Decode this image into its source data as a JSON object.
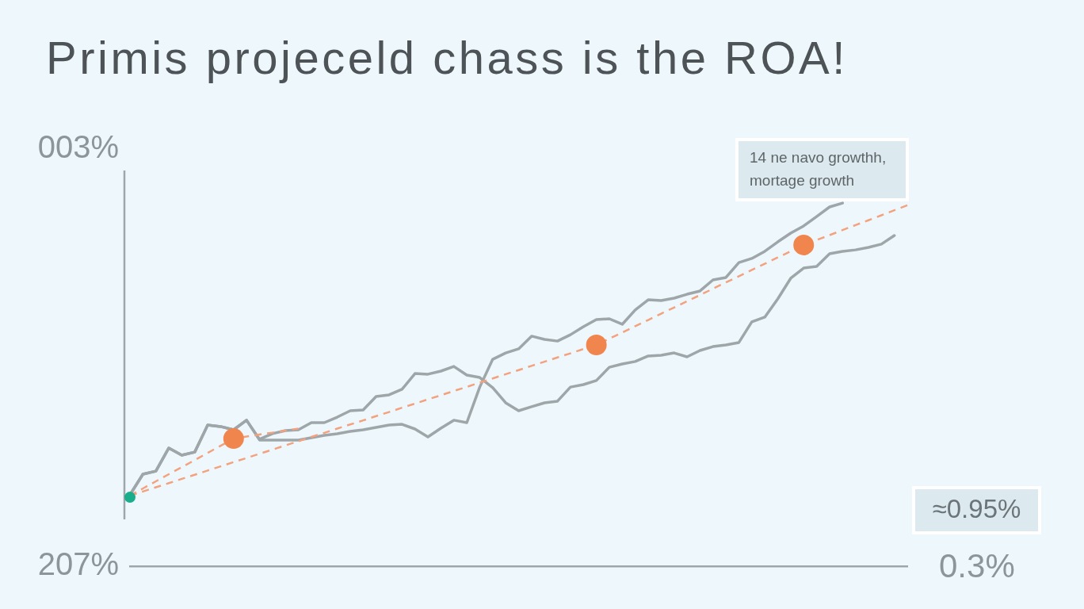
{
  "chart_data": {
    "type": "line",
    "title": "Primis projeceld chass is the ROA!",
    "categories": [
      null,
      null,
      null,
      null,
      null,
      null,
      null,
      null,
      null,
      null,
      null,
      null,
      null,
      null,
      null,
      null,
      null,
      null,
      null,
      null,
      null,
      null,
      null,
      null,
      null,
      null,
      null,
      null,
      null,
      null,
      null,
      null,
      null,
      null,
      null,
      null,
      null,
      null,
      null,
      null,
      null,
      null,
      null,
      null,
      null,
      null,
      null,
      null,
      null,
      null,
      null,
      null,
      null,
      null,
      null,
      null,
      null,
      null,
      null,
      null,
      null
    ],
    "ylim": [
      207,
      3
    ],
    "yticks": [
      {
        "value": 3,
        "label": "003%"
      },
      {
        "value": 207,
        "label": "207%"
      }
    ],
    "series": [
      {
        "type": "line",
        "color": "#9ea6a9",
        "values": [
          172.1,
          162.0,
          160.5,
          149.2,
          152.7,
          151.2,
          138.0,
          138.7,
          140.3,
          135.6,
          144.9,
          142.2,
          140.7,
          140.3,
          136.8,
          136.8,
          134.1,
          131.0,
          130.6,
          124.0,
          123.2,
          120.5,
          112.8,
          113.1,
          111.6,
          109.3,
          113.5,
          114.7,
          119.7,
          127.1,
          131.0,
          129.0,
          127.1,
          126.3,
          119.4,
          118.2,
          116.2,
          109.7,
          108.1,
          106.9,
          104.2,
          103.8,
          102.7,
          104.6,
          101.5,
          99.6,
          98.8,
          97.6,
          87.5,
          85.2,
          76.3,
          66.2,
          61.2,
          60.4,
          54.2,
          53.0,
          52.3,
          51.1,
          49.5,
          45.3,
          null
        ]
      },
      {
        "type": "line",
        "color": "#9ea6a9",
        "values": [
          172.1,
          162.0,
          160.5,
          149.2,
          152.7,
          151.2,
          138.0,
          138.7,
          140.3,
          135.6,
          145.3,
          145.3,
          145.3,
          145.3,
          144.2,
          143.0,
          142.2,
          141.1,
          140.3,
          139.1,
          138.0,
          137.6,
          139.9,
          143.8,
          139.5,
          135.6,
          136.8,
          119.4,
          105.8,
          102.7,
          100.7,
          94.5,
          96.1,
          96.9,
          93.8,
          89.9,
          86.4,
          86.0,
          88.7,
          81.7,
          76.7,
          77.1,
          75.9,
          74.0,
          72.4,
          67.0,
          65.8,
          58.5,
          56.5,
          53.0,
          48.4,
          44.1,
          40.6,
          36.0,
          31.3,
          29.4,
          null,
          null,
          null,
          null,
          null
        ]
      },
      {
        "type": "line",
        "color": "#f3a27f",
        "line_style": "dashed",
        "values": [
          172.5,
          170.5,
          168.4,
          166.4,
          164.3,
          162.3,
          160.2,
          158.2,
          156.1,
          154.1,
          152.0,
          150.0,
          147.9,
          145.9,
          143.8,
          141.8,
          139.7,
          137.7,
          135.7,
          133.6,
          131.6,
          129.5,
          127.5,
          125.4,
          123.4,
          121.3,
          119.3,
          117.2,
          115.2,
          113.1,
          111.1,
          109.0,
          107.0,
          104.9,
          102.9,
          100.8,
          98.8,
          95.7,
          92.7,
          89.6,
          86.6,
          83.5,
          80.5,
          77.4,
          74.4,
          71.3,
          68.2,
          65.2,
          62.1,
          59.1,
          56.0,
          53.0,
          49.9,
          47.5,
          45.1,
          42.6,
          40.2,
          37.8,
          35.4,
          32.9,
          30.5
        ]
      },
      {
        "type": "line",
        "color": "#f3a27f",
        "line_style": "dashed",
        "values": [
          172.5,
          169.0,
          165.5,
          162.0,
          158.6,
          155.1,
          151.6,
          148.1,
          144.6,
          143.6,
          142.6,
          141.7,
          140.7,
          139.7,
          null,
          null,
          null,
          null,
          null,
          null,
          null,
          null,
          null,
          null,
          null,
          null,
          null,
          null,
          null,
          null,
          null,
          null,
          null,
          null,
          null,
          null,
          null,
          null,
          null,
          null,
          null,
          null,
          null,
          null,
          null,
          null,
          null,
          null,
          null,
          null,
          null,
          null,
          null,
          null,
          null,
          null,
          null,
          null,
          null,
          null,
          null
        ]
      },
      {
        "type": "scatter",
        "color": "#f0854e",
        "marker": "circle",
        "values": [
          null,
          null,
          null,
          null,
          null,
          null,
          null,
          null,
          144.6,
          null,
          null,
          null,
          null,
          null,
          null,
          null,
          null,
          null,
          null,
          null,
          null,
          null,
          null,
          null,
          null,
          null,
          null,
          null,
          null,
          null,
          null,
          null,
          null,
          null,
          null,
          null,
          98.8,
          null,
          null,
          null,
          null,
          null,
          null,
          null,
          null,
          null,
          null,
          null,
          null,
          null,
          null,
          null,
          49.9,
          null,
          null,
          null,
          null,
          null,
          null,
          null,
          null
        ]
      },
      {
        "type": "scatter",
        "color": "#19ad8b",
        "marker": "circle",
        "values": [
          173.3,
          null,
          null,
          null,
          null,
          null,
          null,
          null,
          null,
          null,
          null,
          null,
          null,
          null,
          null,
          null,
          null,
          null,
          null,
          null,
          null,
          null,
          null,
          null,
          null,
          null,
          null,
          null,
          null,
          null,
          null,
          null,
          null,
          null,
          null,
          null,
          null,
          null,
          null,
          null,
          null,
          null,
          null,
          null,
          null,
          null,
          null,
          null,
          null,
          null,
          null,
          null,
          null,
          null,
          null,
          null,
          null,
          null,
          null,
          null,
          null
        ]
      }
    ],
    "annotations": [
      "0.3%",
      "14 ne navo growthh, mortage growth",
      "≈0.95%"
    ]
  }
}
